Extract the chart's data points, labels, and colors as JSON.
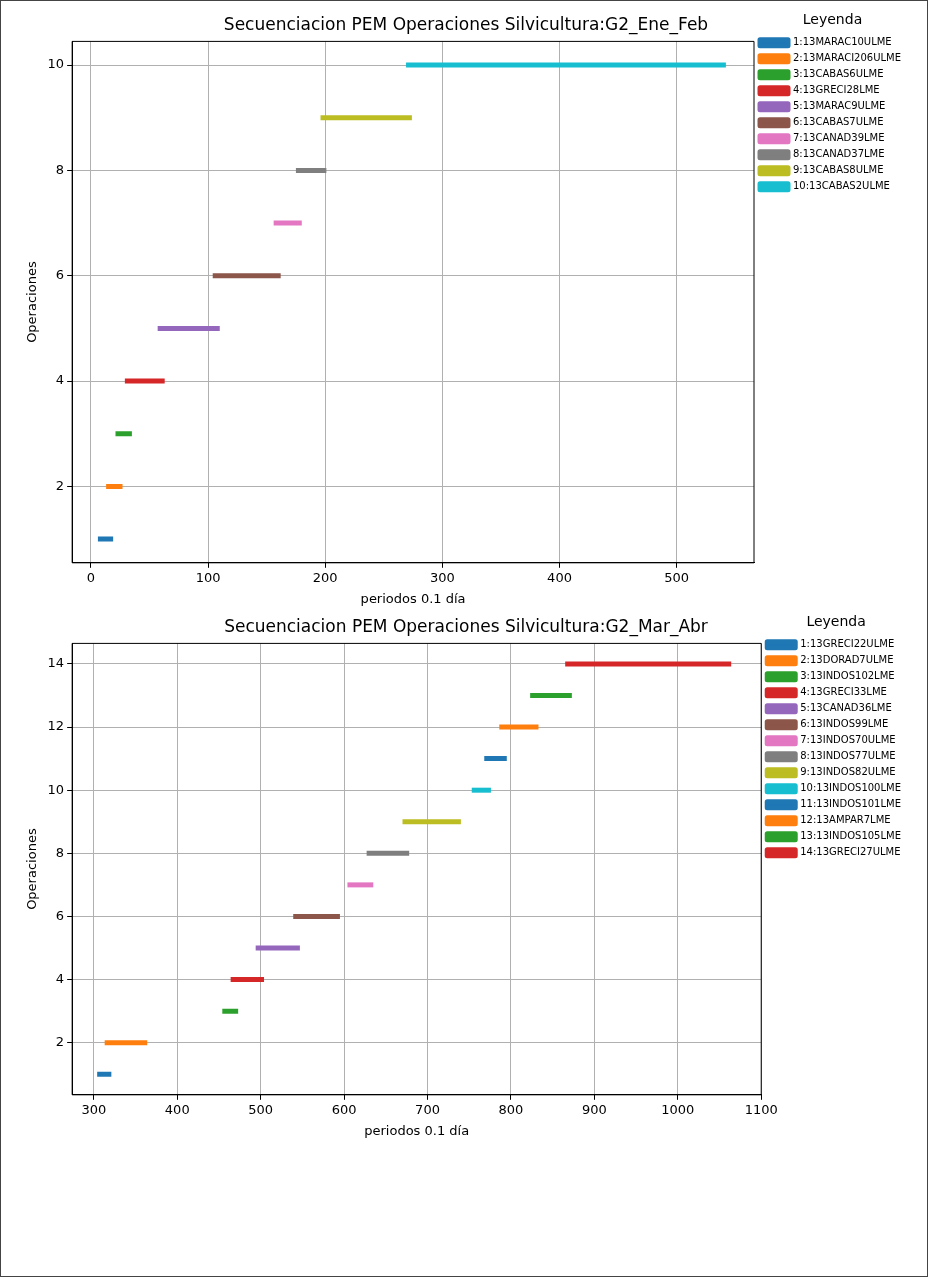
{
  "chart_data": [
    {
      "type": "line",
      "title": "Secuenciacion PEM Operaciones Silvicultura:G2_Ene_Feb",
      "xlabel": "periodos 0.1 día",
      "ylabel": "Operaciones",
      "legend_title": "Leyenda",
      "legend": "right",
      "grid": true,
      "line_style": "solid",
      "xlim": [
        -16,
        566
      ],
      "xticks": [
        0,
        100,
        200,
        300,
        400,
        500
      ],
      "ylim": [
        0.55,
        10.45
      ],
      "yticks": [
        2,
        4,
        6,
        8,
        10
      ],
      "series": [
        {
          "name": "1:13MARAC10ULME",
          "color": "#1f77b4",
          "x": [
            6,
            19
          ],
          "values": [
            1,
            1
          ]
        },
        {
          "name": "2:13MARACI206ULME",
          "color": "#ff7f0e",
          "x": [
            13,
            27
          ],
          "values": [
            2,
            2
          ]
        },
        {
          "name": "3:13CABAS6ULME",
          "color": "#2ca02c",
          "x": [
            21,
            35
          ],
          "values": [
            3,
            3
          ]
        },
        {
          "name": "4:13GRECI28LME",
          "color": "#d62728",
          "x": [
            29,
            63
          ],
          "values": [
            4,
            4
          ]
        },
        {
          "name": "5:13MARAC9ULME",
          "color": "#9467bd",
          "x": [
            57,
            110
          ],
          "values": [
            5,
            5
          ]
        },
        {
          "name": "6:13CABAS7ULME",
          "color": "#8c564b",
          "x": [
            104,
            162
          ],
          "values": [
            6,
            6
          ]
        },
        {
          "name": "7:13CANAD39LME",
          "color": "#e377c2",
          "x": [
            156,
            180
          ],
          "values": [
            7,
            7
          ]
        },
        {
          "name": "8:13CANAD37LME",
          "color": "#7f7f7f",
          "x": [
            175,
            201
          ],
          "values": [
            8,
            8
          ]
        },
        {
          "name": "9:13CABAS8ULME",
          "color": "#bcbd22",
          "x": [
            196,
            274
          ],
          "values": [
            9,
            9
          ]
        },
        {
          "name": "10:13CABAS2ULME",
          "color": "#17becf",
          "x": [
            269,
            542
          ],
          "values": [
            10,
            10
          ]
        }
      ]
    },
    {
      "type": "line",
      "title": "Secuenciacion PEM Operaciones Silvicultura:G2_Mar_Abr",
      "xlabel": "periodos 0.1 día",
      "ylabel": "Operaciones",
      "legend_title": "Leyenda",
      "legend": "right",
      "grid": true,
      "line_style": "solid",
      "xlim": [
        274,
        1100
      ],
      "xticks": [
        300,
        400,
        500,
        600,
        700,
        800,
        900,
        1000,
        1100
      ],
      "ylim": [
        0.35,
        14.65
      ],
      "yticks": [
        2,
        4,
        6,
        8,
        10,
        12,
        14
      ],
      "series": [
        {
          "name": "1:13GRECI22ULME",
          "color": "#1f77b4",
          "x": [
            304,
            321
          ],
          "values": [
            1,
            1
          ]
        },
        {
          "name": "2:13DORAD7ULME",
          "color": "#ff7f0e",
          "x": [
            313,
            364
          ],
          "values": [
            2,
            2
          ]
        },
        {
          "name": "3:13INDOS102LME",
          "color": "#2ca02c",
          "x": [
            454,
            473
          ],
          "values": [
            3,
            3
          ]
        },
        {
          "name": "4:13GRECI33LME",
          "color": "#d62728",
          "x": [
            464,
            504
          ],
          "values": [
            4,
            4
          ]
        },
        {
          "name": "5:13CANAD36LME",
          "color": "#9467bd",
          "x": [
            494,
            547
          ],
          "values": [
            5,
            5
          ]
        },
        {
          "name": "6:13INDOS99LME",
          "color": "#8c564b",
          "x": [
            539,
            595
          ],
          "values": [
            6,
            6
          ]
        },
        {
          "name": "7:13INDOS70ULME",
          "color": "#e377c2",
          "x": [
            604,
            635
          ],
          "values": [
            7,
            7
          ]
        },
        {
          "name": "8:13INDOS77ULME",
          "color": "#7f7f7f",
          "x": [
            627,
            678
          ],
          "values": [
            8,
            8
          ]
        },
        {
          "name": "9:13INDOS82ULME",
          "color": "#bcbd22",
          "x": [
            670,
            740
          ],
          "values": [
            9,
            9
          ]
        },
        {
          "name": "10:13INDOS100LME",
          "color": "#17becf",
          "x": [
            753,
            776
          ],
          "values": [
            10,
            10
          ]
        },
        {
          "name": "11:13INDOS101LME",
          "color": "#1f77b4",
          "x": [
            768,
            795
          ],
          "values": [
            11,
            11
          ]
        },
        {
          "name": "12:13AMPAR7LME",
          "color": "#ff7f0e",
          "x": [
            786,
            833
          ],
          "values": [
            12,
            12
          ]
        },
        {
          "name": "13:13INDOS105LME",
          "color": "#2ca02c",
          "x": [
            823,
            873
          ],
          "values": [
            13,
            13
          ]
        },
        {
          "name": "14:13GRECI27ULME",
          "color": "#d62728",
          "x": [
            865,
            1064
          ],
          "values": [
            14,
            14
          ]
        }
      ]
    }
  ]
}
